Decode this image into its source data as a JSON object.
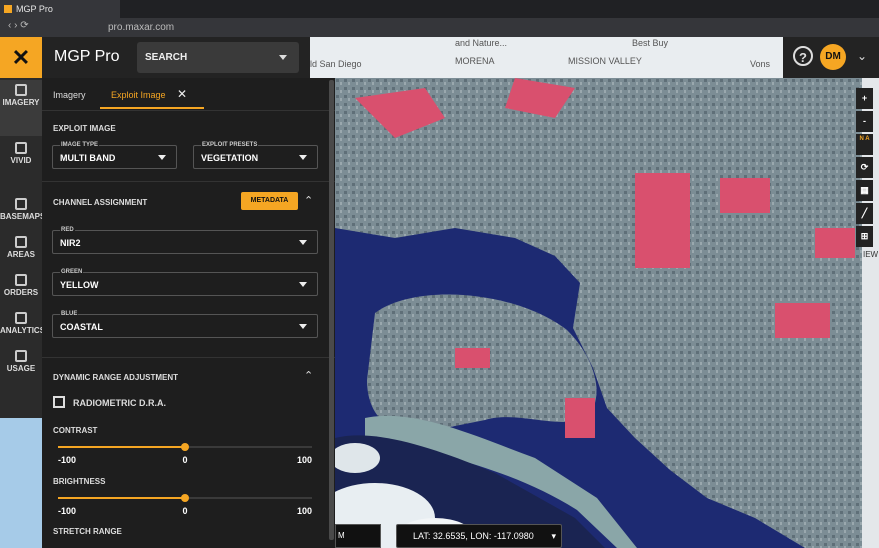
{
  "browser": {
    "tab_title": "MGP Pro",
    "url": "pro.maxar.com"
  },
  "header": {
    "app_name": "MGP Pro",
    "search": "SEARCH",
    "help": "?",
    "user_initials": "DM"
  },
  "map_labels": [
    "ld San Diego",
    "and Nature...",
    "Best Buy",
    "MORENA",
    "MISSION VALLEY",
    "Vons"
  ],
  "nav": [
    "IMAGERY",
    "VIVID",
    "BASEMAPS",
    "AREAS",
    "ORDERS",
    "ANALYTICS",
    "USAGE"
  ],
  "tabs": [
    "Imagery",
    "Exploit Image"
  ],
  "panel": {
    "section_title": "EXPLOIT IMAGE",
    "image_type": {
      "label": "IMAGE TYPE",
      "value": "MULTI BAND"
    },
    "exploit_presets": {
      "label": "EXPLOIT PRESETS",
      "value": "VEGETATION"
    },
    "channel_assignment": "CHANNEL ASSIGNMENT",
    "metadata_button": "METADATA",
    "channels": [
      {
        "label": "RED",
        "value": "NIR2"
      },
      {
        "label": "GREEN",
        "value": "YELLOW"
      },
      {
        "label": "BLUE",
        "value": "COASTAL"
      }
    ],
    "dra_title": "DYNAMIC RANGE ADJUSTMENT",
    "radiometric": "RADIOMETRIC D.R.A.",
    "sliders": [
      {
        "label": "CONTRAST",
        "ticks": [
          -100,
          0,
          100
        ],
        "value": 0
      },
      {
        "label": "BRIGHTNESS",
        "ticks": [
          -100,
          0,
          100
        ],
        "value": 0
      }
    ],
    "stretch_range": "STRETCH RANGE"
  },
  "map_controls": {
    "zoom_in": "+",
    "zoom_out": "-",
    "north": "N A"
  },
  "status": {
    "scale": "M",
    "coordinates": "LAT: 32.6535, LON: -117.0980"
  },
  "right_edge": "IEW"
}
